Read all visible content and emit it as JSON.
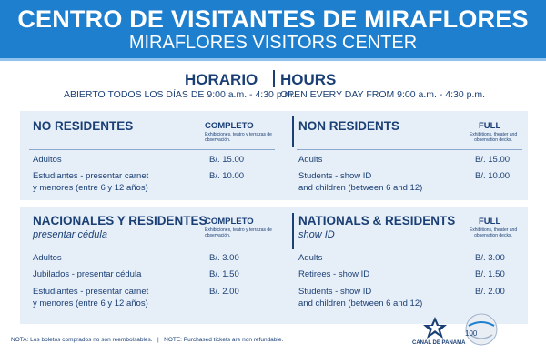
{
  "header": {
    "title_es": "CENTRO DE VISITANTES DE MIRAFLORES",
    "title_en": "MIRAFLORES VISITORS CENTER"
  },
  "hours": {
    "label_es": "HORARIO",
    "label_en": "HOURS",
    "open_es": "ABIERTO TODOS LOS DÍAS DE 9:00 a.m. - 4:30 p.m.",
    "open_en": "OPEN EVERY DAY FROM 9:00 a.m. - 4:30 p.m."
  },
  "non_residents": {
    "es": {
      "title": "NO RESIDENTES",
      "col_header": "COMPLETO",
      "col_note": "Exhibiciones, teatro y terrazas de observación.",
      "rows": [
        {
          "label": "Adultos",
          "price": "B/. 15.00"
        },
        {
          "label": "Estudiantes - presentar carnet\ny menores (entre 6 y 12 años)",
          "price": "B/. 10.00"
        }
      ]
    },
    "en": {
      "title": "NON RESIDENTS",
      "col_header": "FULL",
      "col_note": "Exhibitions, theater and observation decks.",
      "rows": [
        {
          "label": "Adults",
          "price": "B/. 15.00"
        },
        {
          "label": "Students - show ID\nand children (between 6 and 12)",
          "price": "B/. 10.00"
        }
      ]
    }
  },
  "residents": {
    "es": {
      "title": "NACIONALES Y RESIDENTES",
      "subtitle": "presentar cédula",
      "col_header": "COMPLETO",
      "col_note": "Exhibiciones, teatro y terrazas de observación.",
      "rows": [
        {
          "label": "Adultos",
          "price": "B/. 3.00"
        },
        {
          "label": "Jubilados - presentar cédula",
          "price": "B/. 1.50"
        },
        {
          "label": "Estudiantes - presentar carnet\ny menores (entre 6 y 12 años)",
          "price": "B/. 2.00"
        }
      ]
    },
    "en": {
      "title": "NATIONALS & RESIDENTS",
      "subtitle": "show ID",
      "col_header": "FULL",
      "col_note": "Exhibitions, theater and observation decks.",
      "rows": [
        {
          "label": "Adults",
          "price": "B/. 3.00"
        },
        {
          "label": "Retirees - show ID",
          "price": "B/. 1.50"
        },
        {
          "label": "Students - show ID\nand children (between 6 and 12)",
          "price": "B/. 2.00"
        }
      ]
    }
  },
  "footer": {
    "note": "NOTA: Los boletos comprados no son reembolsables.   |   NOTE: Purchased tickets are non refundable."
  },
  "logos": {
    "canal_label": "CANAL DE PANAMÁ",
    "centennial_label": "100"
  },
  "colors": {
    "header_blue": "#1e7fcf",
    "navy": "#1a3f75",
    "panel": "#e6eef7"
  }
}
